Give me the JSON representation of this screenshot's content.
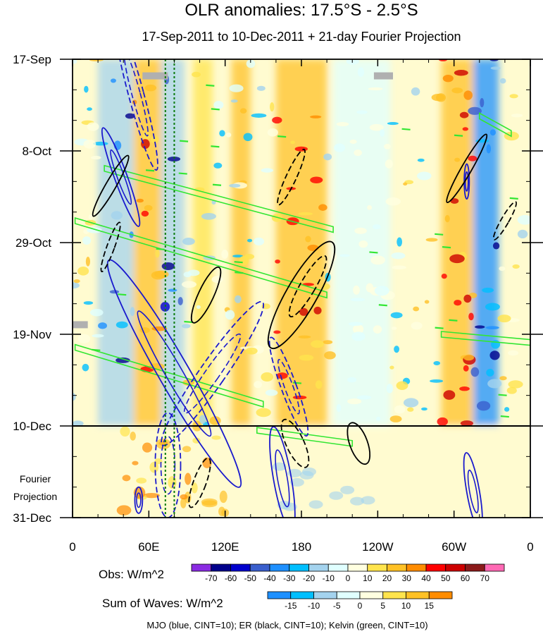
{
  "chart_data": {
    "type": "heatmap",
    "title": "OLR anomalies: 17.5°S - 2.5°S",
    "subtitle": "17-Sep-2011 to 10-Dec-2011 + 21-day Fourier Projection",
    "x_ticks": [
      "0",
      "60E",
      "120E",
      "180",
      "120W",
      "60W",
      "0"
    ],
    "x_lon": [
      0,
      60,
      120,
      180,
      240,
      300,
      360
    ],
    "y_ticks": [
      "17-Sep",
      "8-Oct",
      "29-Oct",
      "19-Nov",
      "10-Dec",
      "31-Dec"
    ],
    "y_days": [
      0,
      21,
      42,
      63,
      84,
      105
    ],
    "projection_label": [
      "Fourier",
      "Projection"
    ],
    "projection_start_day": 84,
    "reference_lines_lon": [
      73,
      80
    ],
    "obs_colorbar": {
      "label": "Obs: W/m^2",
      "levels": [
        "-70",
        "-60",
        "-50",
        "-40",
        "-30",
        "-20",
        "-10",
        "0",
        "10",
        "20",
        "30",
        "40",
        "50",
        "60",
        "70"
      ],
      "colors": [
        "#8a2be2",
        "#00008b",
        "#0000cd",
        "#3a5fcd",
        "#1e90ff",
        "#00bfff",
        "#a4d3ee",
        "#e0ffff",
        "#ffffe0",
        "#ffe44d",
        "#ffc125",
        "#ff8c00",
        "#ff0000",
        "#cd0000",
        "#8b1a1a",
        "#ff69b4"
      ]
    },
    "waves_colorbar": {
      "label": "Sum of Waves: W/m^2",
      "levels": [
        "-15",
        "-10",
        "-5",
        "0",
        "5",
        "10",
        "15"
      ],
      "colors": [
        "#1e90ff",
        "#00bfff",
        "#a4d3ee",
        "#e0ffff",
        "#ffffe0",
        "#ffe44d",
        "#ffc125",
        "#ff8c00"
      ]
    },
    "contour_legend": "MJO (blue, CINT=10); ER (black, CINT=10); Kelvin (green, CINT=10)",
    "band_lon": [
      [
        20,
        48,
        "#a4d3ee"
      ],
      [
        48,
        70,
        "#ffc125"
      ],
      [
        70,
        88,
        "#a4d3ee"
      ],
      [
        95,
        110,
        "#ffe44d"
      ],
      [
        125,
        140,
        "#ffc125"
      ],
      [
        160,
        200,
        "#ffc125"
      ],
      [
        205,
        250,
        "#e0ffff"
      ],
      [
        290,
        315,
        "#ffc125"
      ],
      [
        315,
        335,
        "#1e90ff"
      ]
    ],
    "mjo_contours": [
      {
        "lon": 50,
        "day": 8,
        "rx": 6,
        "ry": 18,
        "rot": -15,
        "dash": true
      },
      {
        "lon": 38,
        "day": 27,
        "rx": 5,
        "ry": 12,
        "rot": -20,
        "dash": false
      },
      {
        "lon": 110,
        "day": 72,
        "rx": 10,
        "ry": 20,
        "rot": 35,
        "dash": true
      },
      {
        "lon": 80,
        "day": 72,
        "rx": 12,
        "ry": 30,
        "rot": -30,
        "dash": false
      },
      {
        "lon": 75,
        "day": 93,
        "rx": 10,
        "ry": 12,
        "rot": 0,
        "dash": true
      },
      {
        "lon": 165,
        "day": 96,
        "rx": 7,
        "ry": 12,
        "rot": -10,
        "dash": false
      },
      {
        "lon": 170,
        "day": 75,
        "rx": 6,
        "ry": 12,
        "rot": -20,
        "dash": true
      },
      {
        "lon": 315,
        "day": 99,
        "rx": 5,
        "ry": 9,
        "rot": -10,
        "dash": false
      },
      {
        "lon": 52,
        "day": 101,
        "rx": 3,
        "ry": 3,
        "rot": 0,
        "dash": false
      },
      {
        "lon": 310,
        "day": 28,
        "rx": 2,
        "ry": 4,
        "rot": 0,
        "dash": false
      }
    ],
    "er_contours": [
      {
        "lon": 30,
        "day": 29,
        "rx": 4,
        "ry": 8,
        "rot": 30,
        "dash": false
      },
      {
        "lon": 30,
        "day": 43,
        "rx": 3,
        "ry": 6,
        "rot": 20,
        "dash": true
      },
      {
        "lon": 180,
        "day": 54,
        "rx": 12,
        "ry": 14,
        "rot": 30,
        "dash": false
      },
      {
        "lon": 185,
        "day": 52,
        "rx": 6,
        "ry": 8,
        "rot": 30,
        "dash": true
      },
      {
        "lon": 105,
        "day": 54,
        "rx": 6,
        "ry": 7,
        "rot": 25,
        "dash": false
      },
      {
        "lon": 172,
        "day": 27,
        "rx": 4,
        "ry": 7,
        "rot": 25,
        "dash": true
      },
      {
        "lon": 310,
        "day": 25,
        "rx": 4,
        "ry": 9,
        "rot": 30,
        "dash": false
      },
      {
        "lon": 340,
        "day": 37,
        "rx": 3,
        "ry": 5,
        "rot": 30,
        "dash": true
      },
      {
        "lon": 100,
        "day": 97,
        "rx": 5,
        "ry": 6,
        "rot": 20,
        "dash": true
      },
      {
        "lon": 175,
        "day": 88,
        "rx": 7,
        "ry": 6,
        "rot": -25,
        "dash": true
      },
      {
        "lon": 225,
        "day": 88,
        "rx": 7,
        "ry": 5,
        "rot": -20,
        "dash": false
      }
    ],
    "kelvin_contours": [
      {
        "lon0": 25,
        "day0": 25,
        "lon1": 205,
        "day1": 39
      },
      {
        "lon0": 2,
        "day0": 37,
        "lon1": 200,
        "day1": 54
      },
      {
        "lon0": 2,
        "day0": 66,
        "lon1": 150,
        "day1": 79
      },
      {
        "lon0": 290,
        "day0": 63,
        "lon1": 365,
        "day1": 65
      },
      {
        "lon0": 320,
        "day0": 13,
        "lon1": 345,
        "day1": 17
      },
      {
        "lon0": 145,
        "day0": 85,
        "lon1": 220,
        "day1": 88
      }
    ]
  }
}
